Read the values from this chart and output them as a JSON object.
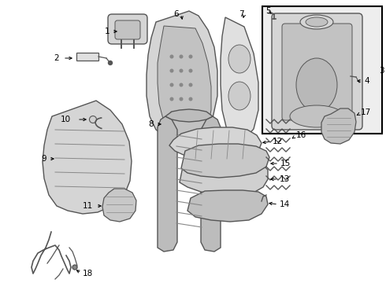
{
  "bg_color": "#ffffff",
  "line_color": "#555555",
  "medium_gray": "#888888",
  "fill1": "#d5d5d5",
  "fill2": "#c2c2c2",
  "fill3": "#e0e0e0",
  "fill4": "#c8c8c8"
}
